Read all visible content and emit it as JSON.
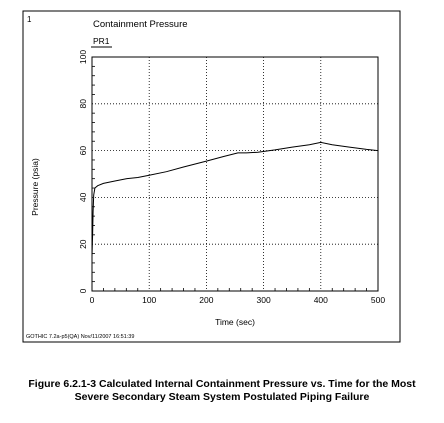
{
  "panel_number": "1",
  "footer": "GOTHIC 7.2a-p5(QA) Nov/11/2007 16:51:39",
  "caption": {
    "line1": "Figure 6.2.1-3  Calculated Internal Containment Pressure vs. Time for the Most",
    "line2": "Severe Secondary Steam System Postulated Piping Failure"
  },
  "chart_data": {
    "type": "line",
    "title": "Containment Pressure",
    "xlabel": "Time (sec)",
    "ylabel": "Pressure (psia)",
    "xlim": [
      0,
      500
    ],
    "ylim": [
      0,
      100
    ],
    "xticks": [
      0,
      100,
      200,
      300,
      400,
      500
    ],
    "yticks": [
      0,
      20,
      40,
      60,
      80,
      100
    ],
    "grid": true,
    "legend": "top-left",
    "series": [
      {
        "name": "PR1",
        "color": "#000000",
        "x": [
          0,
          1,
          2,
          3,
          5,
          10,
          20,
          40,
          60,
          80,
          100,
          130,
          160,
          200,
          230,
          255,
          270,
          290,
          320,
          350,
          380,
          400,
          420,
          450,
          480,
          500
        ],
        "y": [
          14.7,
          24,
          34,
          41,
          44,
          45,
          46,
          47,
          48,
          48.5,
          49.5,
          51,
          53,
          55.5,
          57.5,
          59,
          59,
          59.3,
          60.3,
          61.5,
          62.5,
          63.5,
          62.5,
          61.5,
          60.5,
          60
        ]
      }
    ]
  }
}
